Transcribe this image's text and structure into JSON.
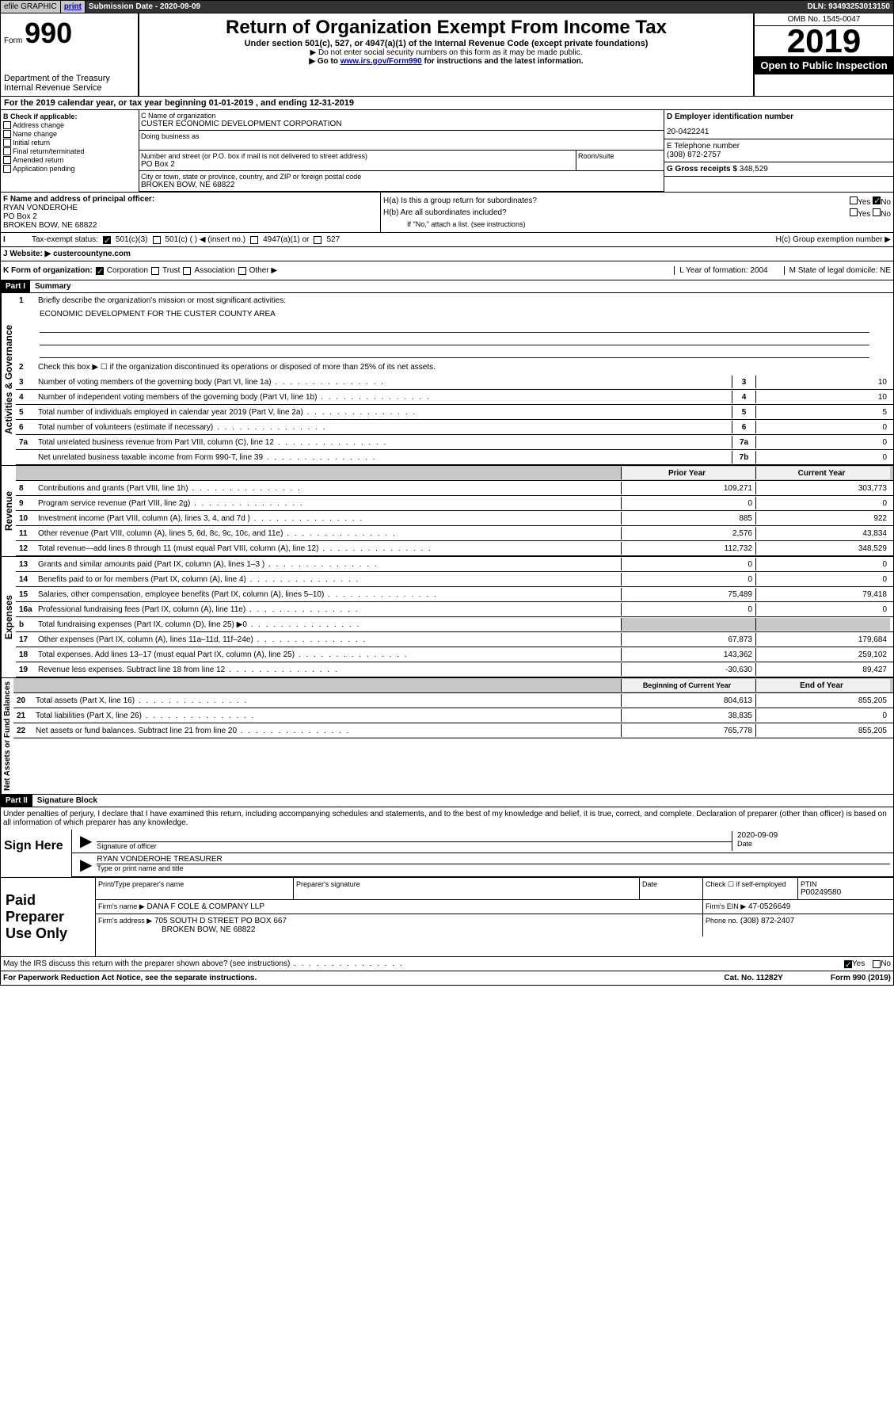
{
  "topbar": {
    "efile": "efile GRAPHIC",
    "print": "print",
    "subdate_label": "Submission Date - 2020-09-09",
    "dln": "DLN: 93493253013150"
  },
  "header": {
    "form_prefix": "Form",
    "form_num": "990",
    "dept": "Department of the Treasury Internal Revenue Service",
    "title": "Return of Organization Exempt From Income Tax",
    "sub1": "Under section 501(c), 527, or 4947(a)(1) of the Internal Revenue Code (except private foundations)",
    "sub2": "▶ Do not enter social security numbers on this form as it may be made public.",
    "sub3_pre": "▶ Go to ",
    "sub3_link": "www.irs.gov/Form990",
    "sub3_post": " for instructions and the latest information.",
    "omb": "OMB No. 1545-0047",
    "year": "2019",
    "inspection": "Open to Public Inspection"
  },
  "A": {
    "text": "For the 2019 calendar year, or tax year beginning 01-01-2019    , and ending 12-31-2019"
  },
  "B": {
    "label": "B Check if applicable:",
    "items": [
      "Address change",
      "Name change",
      "Initial return",
      "Final return/terminated",
      "Amended return",
      "Application pending"
    ]
  },
  "C": {
    "name_label": "C Name of organization",
    "name": "CUSTER ECONOMIC DEVELOPMENT CORPORATION",
    "dba_label": "Doing business as",
    "addr_label": "Number and street (or P.O. box if mail is not delivered to street address)",
    "addr": "PO Box 2",
    "room_label": "Room/suite",
    "city_label": "City or town, state or province, country, and ZIP or foreign postal code",
    "city": "BROKEN BOW, NE  68822"
  },
  "D": {
    "label": "D Employer identification number",
    "value": "20-0422241"
  },
  "E": {
    "label": "E Telephone number",
    "value": "(308) 872-2757"
  },
  "G": {
    "label": "G Gross receipts $",
    "value": "348,529"
  },
  "F": {
    "label": "F  Name and address of principal officer:",
    "name": "RYAN VONDEROHE",
    "addr": "PO Box 2",
    "city": "BROKEN BOW, NE  68822"
  },
  "H": {
    "a": "H(a)  Is this a group return for subordinates?",
    "b": "H(b)  Are all subordinates included?",
    "b_note": "If \"No,\" attach a list. (see instructions)",
    "c": "H(c)  Group exemption number ▶",
    "yes": "Yes",
    "no": "No"
  },
  "I": {
    "label": "Tax-exempt status:",
    "opts": [
      "501(c)(3)",
      "501(c) (   ) ◀ (insert no.)",
      "4947(a)(1) or",
      "527"
    ]
  },
  "J": {
    "label": "Website: ▶",
    "value": "custercountyne.com"
  },
  "K": {
    "label": "K Form of organization:",
    "opts": [
      "Corporation",
      "Trust",
      "Association",
      "Other ▶"
    ],
    "L": "L Year of formation: 2004",
    "M": "M State of legal domicile: NE"
  },
  "part1": {
    "hdr": "Part I",
    "title": "Summary"
  },
  "gov": {
    "label": "Activities & Governance",
    "l1": "Briefly describe the organization's mission or most significant activities:",
    "mission": "ECONOMIC DEVELOPMENT FOR THE CUSTER COUNTY AREA",
    "l2": "Check this box ▶ ☐  if the organization discontinued its operations or disposed of more than 25% of its net assets.",
    "rows": [
      {
        "n": "3",
        "t": "Number of voting members of the governing body (Part VI, line 1a)",
        "c": "3",
        "v": "10"
      },
      {
        "n": "4",
        "t": "Number of independent voting members of the governing body (Part VI, line 1b)",
        "c": "4",
        "v": "10"
      },
      {
        "n": "5",
        "t": "Total number of individuals employed in calendar year 2019 (Part V, line 2a)",
        "c": "5",
        "v": "5"
      },
      {
        "n": "6",
        "t": "Total number of volunteers (estimate if necessary)",
        "c": "6",
        "v": "0"
      },
      {
        "n": "7a",
        "t": "Total unrelated business revenue from Part VIII, column (C), line 12",
        "c": "7a",
        "v": "0"
      },
      {
        "n": "",
        "t": "Net unrelated business taxable income from Form 990-T, line 39",
        "c": "7b",
        "v": "0"
      }
    ]
  },
  "rev": {
    "label": "Revenue",
    "py": "Prior Year",
    "cy": "Current Year",
    "rows": [
      {
        "n": "8",
        "t": "Contributions and grants (Part VIII, line 1h)",
        "py": "109,271",
        "cy": "303,773"
      },
      {
        "n": "9",
        "t": "Program service revenue (Part VIII, line 2g)",
        "py": "0",
        "cy": "0"
      },
      {
        "n": "10",
        "t": "Investment income (Part VIII, column (A), lines 3, 4, and 7d )",
        "py": "885",
        "cy": "922"
      },
      {
        "n": "11",
        "t": "Other revenue (Part VIII, column (A), lines 5, 6d, 8c, 9c, 10c, and 11e)",
        "py": "2,576",
        "cy": "43,834"
      },
      {
        "n": "12",
        "t": "Total revenue—add lines 8 through 11 (must equal Part VIII, column (A), line 12)",
        "py": "112,732",
        "cy": "348,529"
      }
    ]
  },
  "exp": {
    "label": "Expenses",
    "rows": [
      {
        "n": "13",
        "t": "Grants and similar amounts paid (Part IX, column (A), lines 1–3 )",
        "py": "0",
        "cy": "0"
      },
      {
        "n": "14",
        "t": "Benefits paid to or for members (Part IX, column (A), line 4)",
        "py": "0",
        "cy": "0"
      },
      {
        "n": "15",
        "t": "Salaries, other compensation, employee benefits (Part IX, column (A), lines 5–10)",
        "py": "75,489",
        "cy": "79,418"
      },
      {
        "n": "16a",
        "t": "Professional fundraising fees (Part IX, column (A), line 11e)",
        "py": "0",
        "cy": "0"
      },
      {
        "n": "b",
        "t": "Total fundraising expenses (Part IX, column (D), line 25) ▶0",
        "py": "",
        "cy": "",
        "gray": true
      },
      {
        "n": "17",
        "t": "Other expenses (Part IX, column (A), lines 11a–11d, 11f–24e)",
        "py": "67,873",
        "cy": "179,684"
      },
      {
        "n": "18",
        "t": "Total expenses. Add lines 13–17 (must equal Part IX, column (A), line 25)",
        "py": "143,362",
        "cy": "259,102"
      },
      {
        "n": "19",
        "t": "Revenue less expenses. Subtract line 18 from line 12",
        "py": "-30,630",
        "cy": "89,427"
      }
    ]
  },
  "net": {
    "label": "Net Assets or Fund Balances",
    "py": "Beginning of Current Year",
    "cy": "End of Year",
    "rows": [
      {
        "n": "20",
        "t": "Total assets (Part X, line 16)",
        "py": "804,613",
        "cy": "855,205"
      },
      {
        "n": "21",
        "t": "Total liabilities (Part X, line 26)",
        "py": "38,835",
        "cy": "0"
      },
      {
        "n": "22",
        "t": "Net assets or fund balances. Subtract line 21 from line 20",
        "py": "765,778",
        "cy": "855,205"
      }
    ]
  },
  "part2": {
    "hdr": "Part II",
    "title": "Signature Block"
  },
  "sig": {
    "text": "Under penalties of perjury, I declare that I have examined this return, including accompanying schedules and statements, and to the best of my knowledge and belief, it is true, correct, and complete. Declaration of preparer (other than officer) is based on all information of which preparer has any knowledge.",
    "sign_here": "Sign Here",
    "date": "2020-09-09",
    "date_label": "Date",
    "sig_label": "Signature of officer",
    "name": "RYAN VONDEROHE TREASURER",
    "name_label": "Type or print name and title"
  },
  "paid": {
    "label": "Paid Preparer Use Only",
    "h1": "Print/Type preparer's name",
    "h2": "Preparer's signature",
    "h3": "Date",
    "h4_a": "Check ☐ if self-employed",
    "h4_b": "PTIN",
    "ptin": "P00249580",
    "firm_label": "Firm's name    ▶",
    "firm": "DANA F COLE & COMPANY LLP",
    "ein_label": "Firm's EIN ▶",
    "ein": "47-0526649",
    "addr_label": "Firm's address ▶",
    "addr": "705 SOUTH D STREET PO BOX 667",
    "addr2": "BROKEN BOW, NE  68822",
    "phone_label": "Phone no.",
    "phone": "(308) 872-2407"
  },
  "bottom": {
    "q": "May the IRS discuss this return with the preparer shown above? (see instructions)",
    "yes": "Yes",
    "no": "No"
  },
  "footer": {
    "left": "For Paperwork Reduction Act Notice, see the separate instructions.",
    "mid": "Cat. No. 11282Y",
    "right": "Form 990 (2019)"
  }
}
